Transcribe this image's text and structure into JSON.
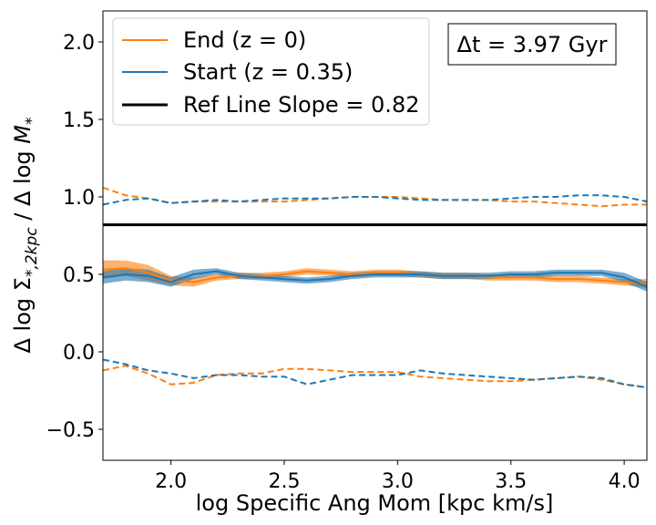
{
  "chart_data": {
    "type": "line",
    "xlabel": "log Specific Ang Mom [kpc km/s]",
    "ylabel_parts": [
      "Δ log Σ",
      "*,2kpc",
      " / Δ log ",
      "M",
      "*"
    ],
    "xlim": [
      1.7,
      4.1
    ],
    "ylim": [
      -0.7,
      2.2
    ],
    "xticks": [
      2.0,
      2.5,
      3.0,
      3.5,
      4.0
    ],
    "xtick_labels": [
      "2.0",
      "2.5",
      "3.0",
      "3.5",
      "4.0"
    ],
    "yticks": [
      -0.5,
      0.0,
      0.5,
      1.0,
      1.5,
      2.0
    ],
    "ytick_labels": [
      "−0.5",
      "0.0",
      "0.5",
      "1.0",
      "1.5",
      "2.0"
    ],
    "annotation": "Δt = 3.97 Gyr",
    "ref_line": {
      "label": "Ref Line Slope = 0.82",
      "y": 0.82,
      "color": "#000000"
    },
    "series": [
      {
        "name": "End (z = 0)",
        "color": "#ff7f0e",
        "x": [
          1.7,
          1.8,
          1.9,
          2.0,
          2.1,
          2.2,
          2.3,
          2.4,
          2.5,
          2.6,
          2.7,
          2.8,
          2.9,
          3.0,
          3.1,
          3.2,
          3.3,
          3.4,
          3.5,
          3.6,
          3.7,
          3.8,
          3.9,
          4.0,
          4.1
        ],
        "median": [
          0.53,
          0.54,
          0.51,
          0.46,
          0.45,
          0.48,
          0.49,
          0.49,
          0.5,
          0.52,
          0.51,
          0.5,
          0.51,
          0.51,
          0.5,
          0.49,
          0.49,
          0.48,
          0.48,
          0.48,
          0.47,
          0.47,
          0.46,
          0.45,
          0.44
        ],
        "band_halfwidth": [
          0.06,
          0.05,
          0.05,
          0.03,
          0.03,
          0.02,
          0.02,
          0.02,
          0.02,
          0.02,
          0.02,
          0.02,
          0.02,
          0.02,
          0.02,
          0.02,
          0.02,
          0.02,
          0.02,
          0.02,
          0.02,
          0.02,
          0.02,
          0.02,
          0.03
        ],
        "upper": [
          1.06,
          1.01,
          0.99,
          0.96,
          0.97,
          0.97,
          0.97,
          0.97,
          0.97,
          0.98,
          0.99,
          1.0,
          1.0,
          1.0,
          0.99,
          0.98,
          0.98,
          0.98,
          0.97,
          0.97,
          0.96,
          0.95,
          0.94,
          0.95,
          0.95
        ],
        "lower": [
          -0.12,
          -0.09,
          -0.14,
          -0.21,
          -0.2,
          -0.15,
          -0.14,
          -0.14,
          -0.11,
          -0.11,
          -0.12,
          -0.13,
          -0.13,
          -0.13,
          -0.16,
          -0.17,
          -0.18,
          -0.19,
          -0.19,
          -0.18,
          -0.17,
          -0.16,
          -0.18,
          -0.21,
          -0.23
        ]
      },
      {
        "name": "Start (z = 0.35)",
        "color": "#1f77b4",
        "x": [
          1.7,
          1.8,
          1.9,
          2.0,
          2.1,
          2.2,
          2.3,
          2.4,
          2.5,
          2.6,
          2.7,
          2.8,
          2.9,
          3.0,
          3.1,
          3.2,
          3.3,
          3.4,
          3.5,
          3.6,
          3.7,
          3.8,
          3.9,
          4.0,
          4.1
        ],
        "median": [
          0.48,
          0.5,
          0.49,
          0.45,
          0.5,
          0.52,
          0.49,
          0.48,
          0.47,
          0.46,
          0.47,
          0.49,
          0.5,
          0.5,
          0.5,
          0.49,
          0.49,
          0.49,
          0.5,
          0.5,
          0.51,
          0.51,
          0.51,
          0.48,
          0.42
        ],
        "band_halfwidth": [
          0.04,
          0.04,
          0.04,
          0.03,
          0.03,
          0.02,
          0.02,
          0.02,
          0.02,
          0.02,
          0.02,
          0.02,
          0.02,
          0.02,
          0.02,
          0.02,
          0.02,
          0.02,
          0.02,
          0.02,
          0.02,
          0.02,
          0.02,
          0.03,
          0.03
        ],
        "upper": [
          0.95,
          0.98,
          0.99,
          0.96,
          0.97,
          0.98,
          0.97,
          0.98,
          0.99,
          0.99,
          0.99,
          1.0,
          1.0,
          0.99,
          0.98,
          0.98,
          0.98,
          0.98,
          0.99,
          1.0,
          1.0,
          1.01,
          1.01,
          1.0,
          0.97
        ],
        "lower": [
          -0.05,
          -0.08,
          -0.12,
          -0.14,
          -0.17,
          -0.15,
          -0.15,
          -0.16,
          -0.16,
          -0.21,
          -0.18,
          -0.15,
          -0.15,
          -0.15,
          -0.12,
          -0.14,
          -0.15,
          -0.16,
          -0.17,
          -0.18,
          -0.17,
          -0.16,
          -0.17,
          -0.21,
          -0.23
        ]
      }
    ],
    "legend": {
      "placement": "upper-left",
      "entries": [
        {
          "label": "End (z = 0)",
          "color": "#ff7f0e",
          "style": "solid"
        },
        {
          "label": "Start (z = 0.35)",
          "color": "#1f77b4",
          "style": "solid"
        },
        {
          "label": "Ref Line Slope = 0.82",
          "color": "#000000",
          "style": "solid-thick"
        }
      ]
    }
  }
}
